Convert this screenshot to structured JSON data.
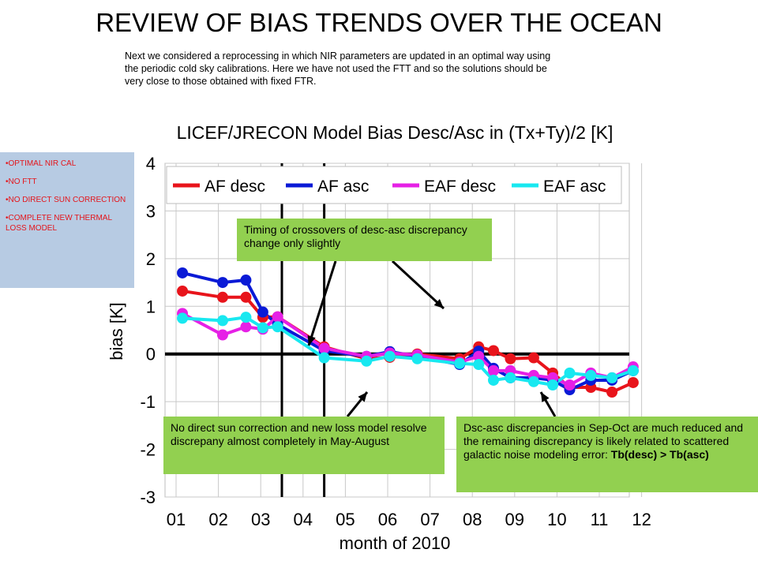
{
  "slide_title": "REVIEW OF BIAS TRENDS OVER THE OCEAN",
  "intro_lines": [
    "Next we considered a reprocessing in which NIR parameters are updated in an optimal way using",
    "the periodic cold sky calibrations. Here we have not used the FTT and so the solutions should be",
    " very close to those obtained with fixed FTR."
  ],
  "sidebar": {
    "items": [
      "OPTIMAL NIR CAL",
      "NO FTT",
      "NO DIRECT SUN CORRECTION",
      "COMPLETE NEW THERMAL LOSS MODEL"
    ]
  },
  "callouts": {
    "top": "Timing of crossovers of desc-asc discrepancy change only slightly",
    "bottom_left": "No direct sun correction and new loss model resolve discrepany almost completely in May-August",
    "bottom_right_text": "Dsc-asc discrepancies in Sep-Oct are much reduced and the remaining discrepancy is likely related to scattered galactic noise modeling error: ",
    "bottom_right_bold": "Tb(desc) > Tb(asc)"
  },
  "chart_data": {
    "type": "line",
    "title": "LICEF/JRECON Model Bias Desc/Asc in (Tx+Ty)/2 [K]",
    "xlabel": "month of 2010",
    "ylabel": "bias [K]",
    "xlim": [
      1,
      12
    ],
    "ylim": [
      -3,
      4
    ],
    "x_ticks": [
      "01",
      "02",
      "03",
      "04",
      "05",
      "06",
      "07",
      "08",
      "09",
      "10",
      "11",
      "12"
    ],
    "y_ticks": [
      "4",
      "3",
      "2",
      "1",
      "0",
      "-1",
      "-2",
      "-3"
    ],
    "grid": true,
    "legend_position": "top",
    "series": [
      {
        "name": "AF desc",
        "color": "#e8141b",
        "x": [
          1.15,
          2.1,
          2.65,
          3.05,
          3.4,
          4.5,
          5.5,
          6.05,
          6.7,
          7.7,
          8.15,
          8.5,
          8.9,
          9.45,
          9.9,
          10.3,
          10.8,
          11.3,
          11.8
        ],
        "y": [
          1.32,
          1.19,
          1.19,
          0.77,
          0.78,
          0.15,
          -0.1,
          -0.07,
          0.0,
          -0.1,
          0.15,
          0.07,
          -0.1,
          -0.08,
          -0.4,
          -0.7,
          -0.7,
          -0.8,
          -0.6
        ]
      },
      {
        "name": "AF asc",
        "color": "#0a1ad6",
        "x": [
          1.15,
          2.1,
          2.65,
          3.05,
          3.4,
          4.5,
          5.5,
          6.05,
          6.7,
          7.7,
          8.15,
          8.5,
          8.9,
          9.45,
          9.9,
          10.3,
          10.8,
          11.3,
          11.8
        ],
        "y": [
          1.7,
          1.5,
          1.55,
          0.88,
          0.62,
          0.07,
          -0.05,
          0.05,
          -0.05,
          -0.22,
          0.06,
          -0.3,
          -0.5,
          -0.5,
          -0.55,
          -0.75,
          -0.55,
          -0.55,
          -0.35
        ]
      },
      {
        "name": "EAF desc",
        "color": "#e620e6",
        "x": [
          1.15,
          2.1,
          2.65,
          3.05,
          3.4,
          4.5,
          5.5,
          6.05,
          6.7,
          7.7,
          8.15,
          8.5,
          8.9,
          9.45,
          9.9,
          10.3,
          10.8,
          11.3,
          11.8
        ],
        "y": [
          0.85,
          0.4,
          0.57,
          0.52,
          0.78,
          0.12,
          -0.05,
          0.02,
          -0.02,
          -0.17,
          -0.05,
          -0.35,
          -0.35,
          -0.45,
          -0.5,
          -0.65,
          -0.4,
          -0.5,
          -0.27
        ]
      },
      {
        "name": "EAF asc",
        "color": "#18e8f0",
        "x": [
          1.15,
          2.1,
          2.65,
          3.05,
          3.4,
          4.5,
          5.5,
          6.05,
          6.7,
          7.7,
          8.15,
          8.5,
          8.9,
          9.45,
          9.9,
          10.3,
          10.8,
          11.3,
          11.8
        ],
        "y": [
          0.75,
          0.7,
          0.77,
          0.55,
          0.57,
          -0.08,
          -0.15,
          -0.05,
          -0.1,
          -0.2,
          -0.22,
          -0.55,
          -0.5,
          -0.58,
          -0.65,
          -0.4,
          -0.45,
          -0.5,
          -0.35
        ]
      }
    ],
    "vertical_lines_at_month": [
      3.5,
      4.5
    ],
    "highlight_boxes": [
      {
        "x_range": [
          4.6,
          7.25
        ],
        "y_range": [
          -0.8,
          0.78
        ]
      },
      {
        "x_range": [
          7.6,
          9.85
        ],
        "y_range": [
          -0.8,
          0.78
        ]
      }
    ],
    "line_colors": {
      "axis": "#000000",
      "box_border": "#f0a050",
      "box_fill": "#d3d3d3",
      "arrow": "#000000"
    }
  }
}
